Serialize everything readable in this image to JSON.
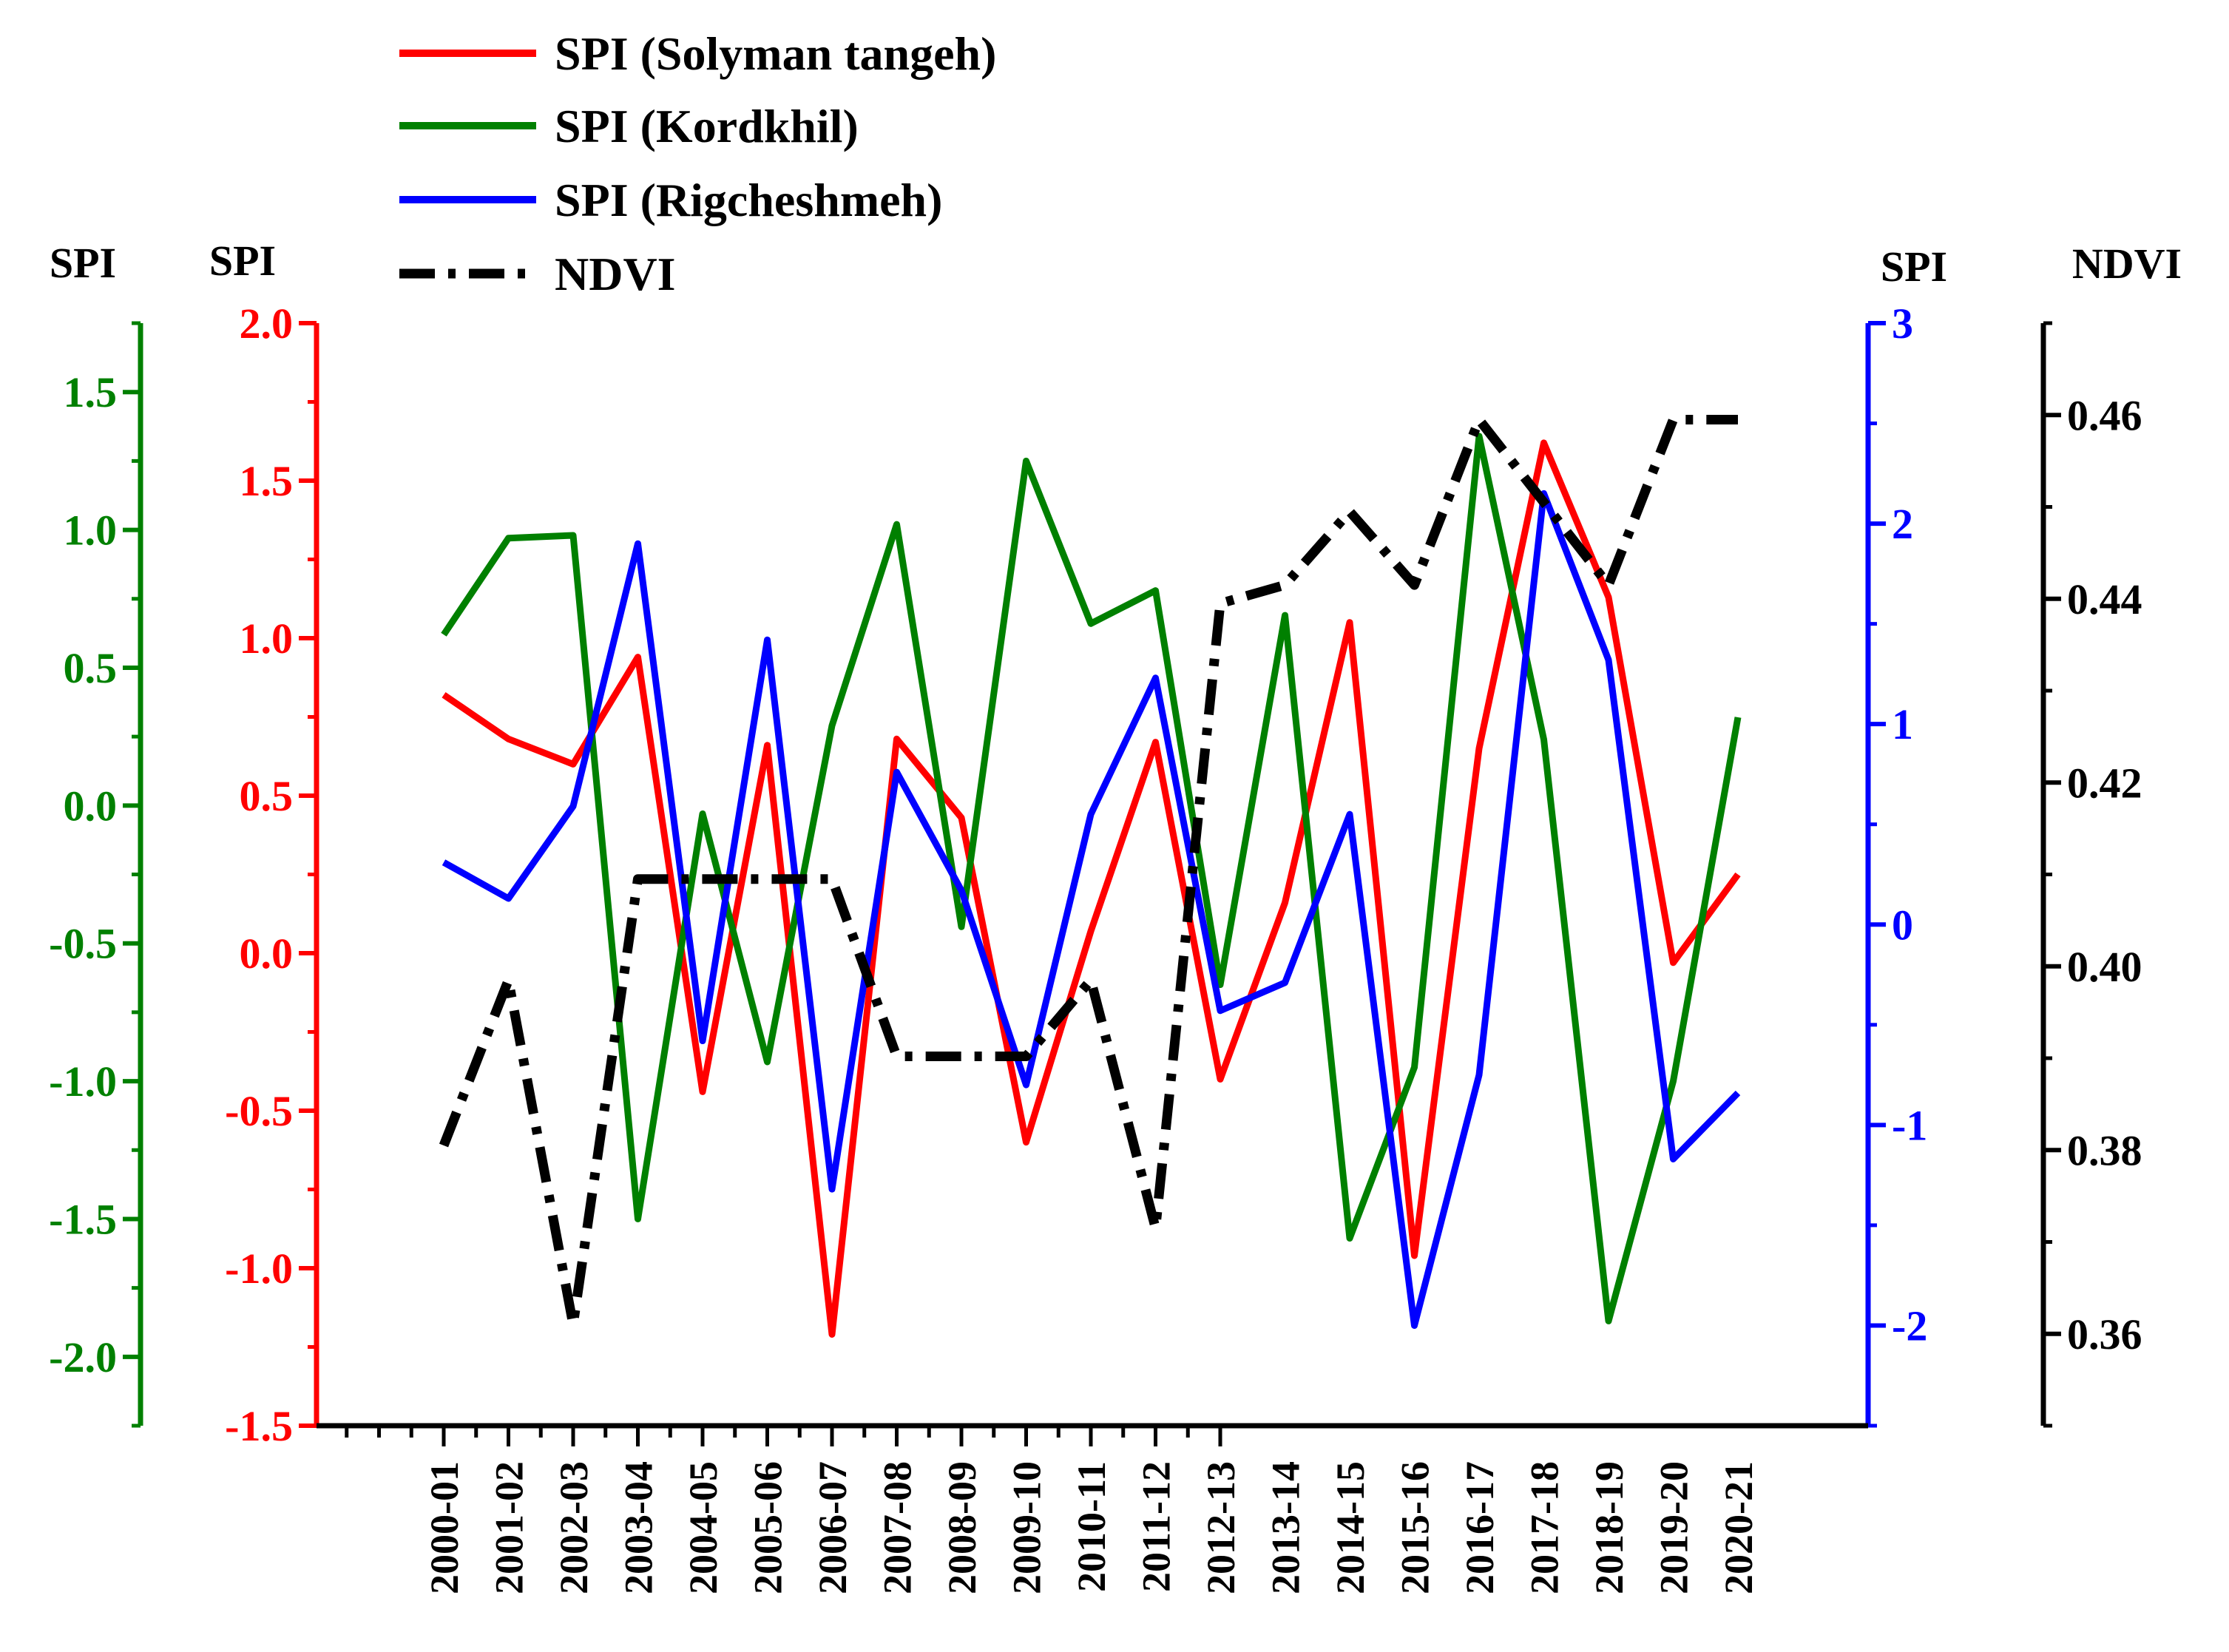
{
  "chart_data": {
    "type": "line",
    "categories": [
      "2000-01",
      "2001-02",
      "2002-03",
      "2003-04",
      "2004-05",
      "2005-06",
      "2006-07",
      "2007-08",
      "2008-09",
      "2009-10",
      "2010-11",
      "2011-12",
      "2012-13",
      "2013-14",
      "2014-15",
      "2015-16",
      "2016-17",
      "2017-18",
      "2018-19",
      "2019-20",
      "2020-21"
    ],
    "series": [
      {
        "name": "SPI (Solyman tangeh)",
        "axis": "spi_red",
        "color": "#ff0000",
        "values": [
          0.82,
          0.68,
          0.6,
          0.94,
          -0.44,
          0.66,
          -1.21,
          0.68,
          0.43,
          -0.6,
          0.07,
          0.67,
          -0.4,
          0.16,
          1.05,
          -0.96,
          0.65,
          1.62,
          1.13,
          -0.03,
          0.25
        ]
      },
      {
        "name": "SPI (Kordkhil)",
        "axis": "spi_green",
        "color": "#008000",
        "values": [
          0.62,
          0.97,
          0.98,
          -1.5,
          -0.03,
          -0.93,
          0.29,
          1.02,
          -0.44,
          1.25,
          0.66,
          0.78,
          -0.65,
          0.69,
          -1.57,
          -0.95,
          1.34,
          0.24,
          -1.87,
          -1.0,
          0.32
        ]
      },
      {
        "name": "SPI (Rigcheshmeh)",
        "axis": "spi_blue",
        "color": "#0000ff",
        "values": [
          0.31,
          0.13,
          0.59,
          1.9,
          -0.58,
          1.42,
          -1.32,
          0.76,
          0.17,
          -0.8,
          0.55,
          1.23,
          -0.43,
          -0.29,
          0.55,
          -2.0,
          -0.75,
          2.15,
          1.32,
          -1.17,
          -0.84
        ]
      },
      {
        "name": "NDVI",
        "axis": "ndvi",
        "color": "#000000",
        "values": [
          0.3805,
          0.3985,
          0.361,
          0.4095,
          0.4095,
          0.4095,
          0.4095,
          0.3902,
          0.3902,
          0.3902,
          0.3985,
          0.3715,
          0.4395,
          0.4415,
          0.4495,
          0.4415,
          0.4595,
          0.4505,
          0.4415,
          0.4595,
          0.4595
        ]
      }
    ],
    "axes": {
      "spi_green": {
        "title": "SPI",
        "color": "#008000",
        "ylim": [
          -2.25,
          1.75
        ],
        "ticks": [
          1.5,
          1.0,
          0.5,
          0.0,
          -0.5,
          -1.0,
          -1.5,
          -2.0
        ],
        "tick_labels": [
          "1.5",
          "1.0",
          "0.5",
          "0.0",
          "-0.5",
          "-1.0",
          "-1.5",
          "-2.0"
        ]
      },
      "spi_red": {
        "title": "SPI",
        "color": "#ff0000",
        "ylim": [
          -1.5,
          2.0
        ],
        "ticks": [
          2.0,
          1.5,
          1.0,
          0.5,
          0.0,
          -0.5,
          -1.0,
          -1.5
        ],
        "tick_labels": [
          "2.0",
          "1.5",
          "1.0",
          "0.5",
          "0.0",
          "-0.5",
          "-1.0",
          "-1.5"
        ]
      },
      "spi_blue": {
        "title": "SPI",
        "color": "#0000ff",
        "ylim": [
          -2.5,
          3.0
        ],
        "ticks": [
          3,
          2,
          1,
          0,
          -1,
          -2
        ],
        "tick_labels": [
          "3",
          "2",
          "1",
          "0",
          "-1",
          "-2"
        ]
      },
      "ndvi": {
        "title": "NDVI",
        "color": "#000000",
        "ylim": [
          0.35,
          0.47
        ],
        "ticks": [
          0.46,
          0.44,
          0.42,
          0.4,
          0.38,
          0.36
        ],
        "tick_labels": [
          "0.46",
          "0.44",
          "0.42",
          "0.40",
          "0.38",
          "0.36"
        ]
      }
    },
    "legend": {
      "position": "top-left",
      "entries": [
        "SPI (Solyman tangeh)",
        "SPI (Kordkhil)",
        "SPI (Rigcheshmeh)",
        "NDVI"
      ]
    },
    "xlabel": "",
    "grid": false
  }
}
